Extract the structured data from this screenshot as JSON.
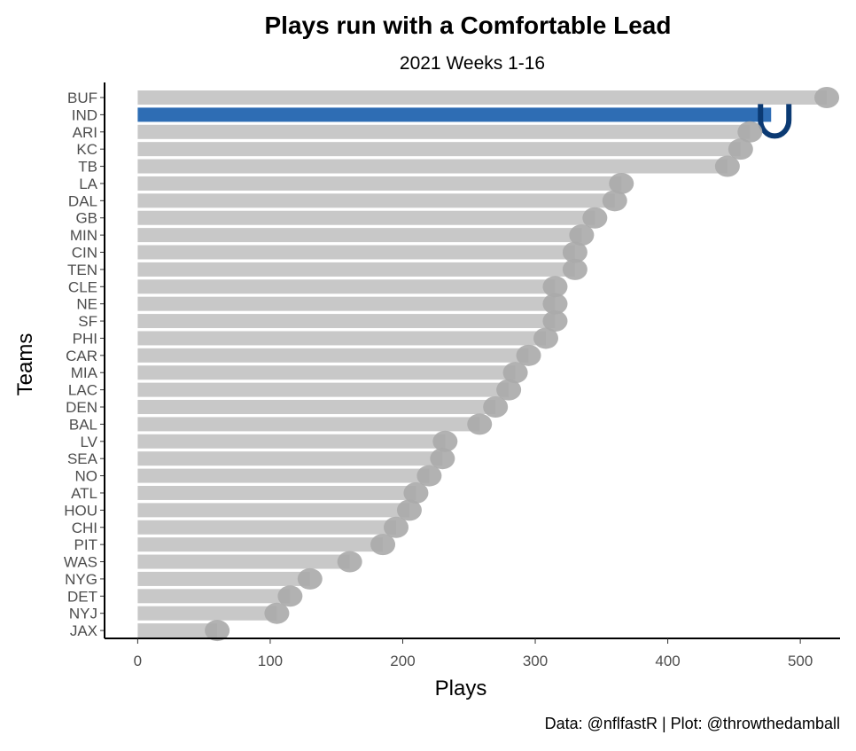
{
  "chart_data": {
    "type": "bar",
    "orientation": "horizontal",
    "title": "Plays run with a Comfortable Lead",
    "subtitle": "2021 Weeks 1-16",
    "xlabel": "Plays",
    "ylabel": "Teams",
    "caption": "Data: @nflfastR | Plot: @throwthedamball",
    "xlim": [
      -25,
      530
    ],
    "xticks": [
      0,
      100,
      200,
      300,
      400,
      500
    ],
    "grid": false,
    "legend": "none",
    "highlight": "IND",
    "colors": {
      "default_bar": "#c8c8c8",
      "highlight_bar": "#2e6db4",
      "logo_gray": "#aaaaaa",
      "logo_highlight": "#0b3a73"
    },
    "categories": [
      "BUF",
      "IND",
      "ARI",
      "KC",
      "TB",
      "LA",
      "DAL",
      "GB",
      "MIN",
      "CIN",
      "TEN",
      "CLE",
      "NE",
      "SF",
      "PHI",
      "CAR",
      "MIA",
      "LAC",
      "DEN",
      "BAL",
      "LV",
      "SEA",
      "NO",
      "ATL",
      "HOU",
      "CHI",
      "PIT",
      "WAS",
      "NYG",
      "DET",
      "NYJ",
      "JAX"
    ],
    "values": [
      520,
      478,
      462,
      455,
      445,
      365,
      360,
      345,
      335,
      330,
      330,
      315,
      315,
      315,
      308,
      295,
      285,
      280,
      270,
      258,
      232,
      230,
      220,
      210,
      205,
      195,
      185,
      160,
      130,
      115,
      105,
      60
    ]
  }
}
